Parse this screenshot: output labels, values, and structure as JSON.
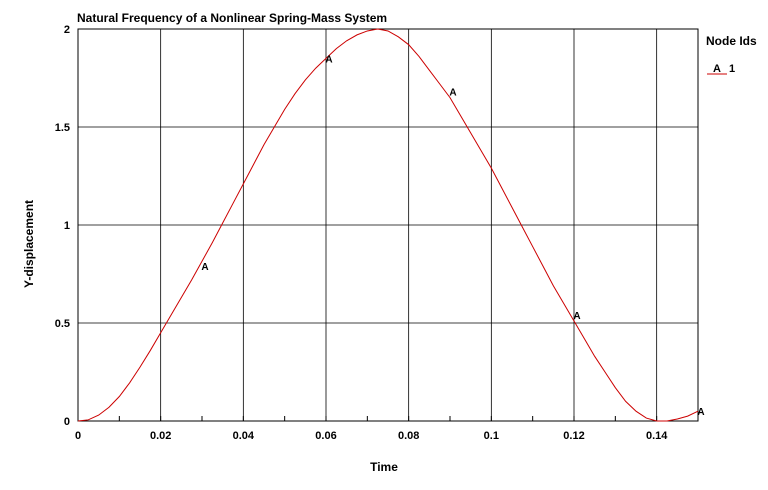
{
  "chart_data": {
    "type": "line",
    "title": "Natural Frequency of a Nonlinear Spring-Mass System",
    "xlabel": "Time",
    "ylabel": "Y-displacement",
    "xlim": [
      0,
      0.15
    ],
    "ylim": [
      0,
      2
    ],
    "xticks": [
      0,
      0.02,
      0.04,
      0.06,
      0.08,
      0.1,
      0.12,
      0.14
    ],
    "xtick_labels": [
      "0",
      "0.02",
      "0.04",
      "0.06",
      "0.08",
      "0.1",
      "0.12",
      "0.14"
    ],
    "yticks": [
      0,
      0.5,
      1,
      1.5,
      2
    ],
    "ytick_labels": [
      "0",
      "0.5",
      "1",
      "1.5",
      "2"
    ],
    "grid": true,
    "legend": {
      "title": "Node Ids",
      "placement": "right",
      "entries": [
        {
          "symbol": "A",
          "label": "1"
        }
      ]
    },
    "series": [
      {
        "name": "1",
        "color": "#cc0000",
        "marker_symbol": "A",
        "x": [
          0,
          0.0025,
          0.005,
          0.0075,
          0.01,
          0.0125,
          0.015,
          0.0175,
          0.02,
          0.0225,
          0.025,
          0.0275,
          0.03,
          0.0325,
          0.035,
          0.0375,
          0.04,
          0.0425,
          0.045,
          0.0475,
          0.05,
          0.0525,
          0.055,
          0.0575,
          0.06,
          0.0625,
          0.065,
          0.0675,
          0.07,
          0.0725,
          0.075,
          0.0775,
          0.08,
          0.0825,
          0.085,
          0.0875,
          0.09,
          0.0925,
          0.095,
          0.0975,
          0.1,
          0.1025,
          0.105,
          0.1075,
          0.11,
          0.1125,
          0.115,
          0.1175,
          0.12,
          0.1225,
          0.125,
          0.1275,
          0.13,
          0.1325,
          0.135,
          0.1375,
          0.14,
          0.1425,
          0.145,
          0.1475,
          0.15
        ],
        "y": [
          0,
          0.006,
          0.03,
          0.07,
          0.125,
          0.195,
          0.275,
          0.36,
          0.45,
          0.54,
          0.63,
          0.72,
          0.815,
          0.91,
          1.01,
          1.11,
          1.21,
          1.31,
          1.41,
          1.5,
          1.59,
          1.67,
          1.74,
          1.8,
          1.85,
          1.9,
          1.94,
          1.97,
          1.99,
          2.0,
          1.99,
          1.96,
          1.92,
          1.86,
          1.79,
          1.72,
          1.65,
          1.56,
          1.47,
          1.38,
          1.29,
          1.19,
          1.09,
          0.99,
          0.89,
          0.79,
          0.69,
          0.6,
          0.51,
          0.42,
          0.33,
          0.25,
          0.17,
          0.1,
          0.05,
          0.015,
          0.0,
          0.0,
          0.01,
          0.025,
          0.05
        ],
        "markers": [
          {
            "x": 0.03,
            "y": 0.79
          },
          {
            "x": 0.06,
            "y": 1.85
          },
          {
            "x": 0.09,
            "y": 1.68
          },
          {
            "x": 0.12,
            "y": 0.54
          },
          {
            "x": 0.15,
            "y": 0.05
          }
        ]
      }
    ]
  }
}
